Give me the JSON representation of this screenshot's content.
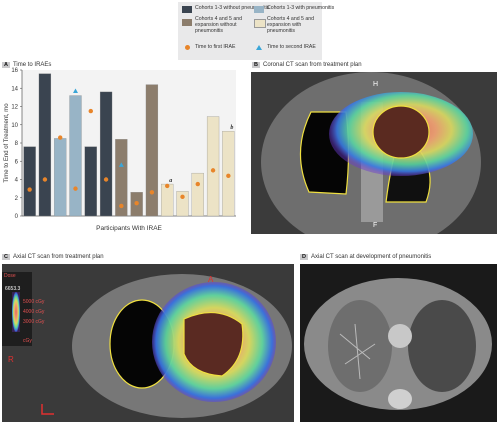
{
  "legend": {
    "items": [
      {
        "label": "Cohorts 1-3 without pneumonitis",
        "color": "#3a4450"
      },
      {
        "label": "Cohorts 1-3 with pneumonitis",
        "color": "#98b4c6"
      },
      {
        "label": "Cohorts 4 and 5 and expansion without pneumonitis",
        "color": "#8c7d6c"
      },
      {
        "label": "Cohorts 4 and 5 and expansion with pneumonitis",
        "color": "#ece3c6"
      },
      {
        "label": "Time to first IRAE",
        "color": "#e8852a",
        "marker": "circle"
      },
      {
        "label": "Time to second IRAE",
        "color": "#3aa6d8",
        "marker": "triangle"
      }
    ]
  },
  "panels": {
    "a": {
      "letter": "A",
      "title": "Time to IRAEs"
    },
    "b": {
      "letter": "B",
      "title": "Coronal CT scan from treatment plan"
    },
    "c": {
      "letter": "C",
      "title": "Axial CT scan from treatment plan"
    },
    "d": {
      "letter": "D",
      "title": "Axial CT scan at development of pneumonitis"
    }
  },
  "chart_data": {
    "type": "bar",
    "ylabel": "Time to End of Treatment, mo",
    "xlabel": "Participants With IRAE",
    "ylim": [
      0,
      16
    ],
    "yticks": [
      0,
      2,
      4,
      6,
      8,
      10,
      12,
      14,
      16
    ],
    "bars": [
      {
        "value": 7.6,
        "group": 0,
        "first": 2.9,
        "second": null,
        "note": ""
      },
      {
        "value": 15.6,
        "group": 0,
        "first": 4.0,
        "second": null,
        "note": ""
      },
      {
        "value": 8.5,
        "group": 1,
        "first": 8.6,
        "second": null,
        "note": ""
      },
      {
        "value": 13.2,
        "group": 1,
        "first": 3.0,
        "second": 13.7,
        "note": ""
      },
      {
        "value": 7.6,
        "group": 0,
        "first": 11.5,
        "second": null,
        "note": ""
      },
      {
        "value": 13.6,
        "group": 0,
        "first": 4.0,
        "second": null,
        "note": ""
      },
      {
        "value": 8.4,
        "group": 2,
        "first": 1.1,
        "second": 5.6,
        "note": ""
      },
      {
        "value": 2.6,
        "group": 2,
        "first": 1.4,
        "second": null,
        "note": ""
      },
      {
        "value": 14.4,
        "group": 2,
        "first": 2.6,
        "second": null,
        "note": ""
      },
      {
        "value": 3.5,
        "group": 3,
        "first": 3.3,
        "second": null,
        "note": "a"
      },
      {
        "value": 2.7,
        "group": 3,
        "first": 2.1,
        "second": null,
        "note": ""
      },
      {
        "value": 4.7,
        "group": 3,
        "first": 3.5,
        "second": null,
        "note": ""
      },
      {
        "value": 10.9,
        "group": 3,
        "first": 5.0,
        "second": null,
        "note": ""
      },
      {
        "value": 9.3,
        "group": 3,
        "first": 4.4,
        "second": null,
        "note": "b"
      }
    ]
  },
  "dose_legend": {
    "header": "Dose",
    "unit": "cGy",
    "max": "6653.3",
    "levels": [
      "5000 cGy",
      "4000 cGy",
      "3000 cGy",
      "cGy"
    ]
  },
  "orientation": {
    "anterior": "A",
    "right": "R",
    "head": "H",
    "foot": "F"
  },
  "colors": {
    "bg": "#ffffff",
    "orange": "#e8852a",
    "blue": "#3aa6d8",
    "contour": "#f0e040"
  }
}
